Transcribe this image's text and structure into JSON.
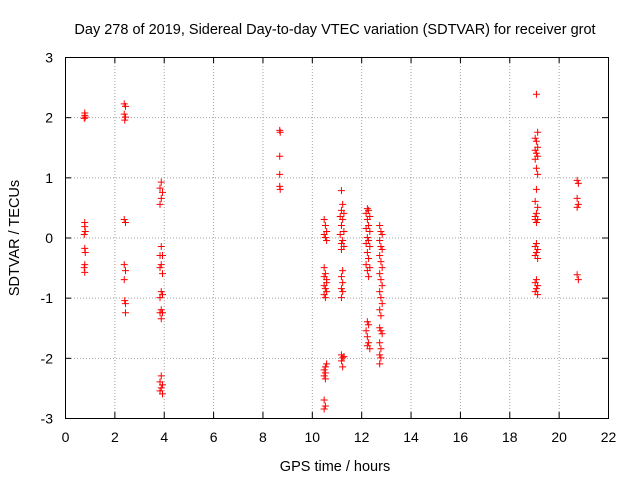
{
  "chart_data": {
    "type": "scatter",
    "title": "Day 278 of 2019, Sidereal Day-to-day VTEC variation (SDTVAR) for receiver grot",
    "xlabel": "GPS time / hours",
    "ylabel": "SDTVAR / TECUs",
    "xlim": [
      0,
      22
    ],
    "ylim": [
      -3,
      3
    ],
    "xticks": [
      "0",
      "2",
      "4",
      "6",
      "8",
      "10",
      "12",
      "14",
      "16",
      "18",
      "20",
      "22"
    ],
    "yticks": [
      "-3",
      "-2",
      "-1",
      "0",
      "1",
      "2",
      "3"
    ],
    "grid": true,
    "marker": "+",
    "color": "#ff0000",
    "series": [
      {
        "name": "SDTVAR",
        "points": [
          [
            0.8,
            2.07
          ],
          [
            0.8,
            2.03
          ],
          [
            0.82,
            2.0
          ],
          [
            0.78,
            1.98
          ],
          [
            0.8,
            0.25
          ],
          [
            0.8,
            0.18
          ],
          [
            0.82,
            0.1
          ],
          [
            0.78,
            0.05
          ],
          [
            0.8,
            -0.18
          ],
          [
            0.82,
            -0.25
          ],
          [
            0.8,
            -0.45
          ],
          [
            0.78,
            -0.5
          ],
          [
            0.8,
            -0.58
          ],
          [
            2.4,
            2.22
          ],
          [
            2.45,
            2.18
          ],
          [
            2.4,
            2.05
          ],
          [
            2.45,
            2.0
          ],
          [
            2.42,
            1.95
          ],
          [
            2.4,
            0.3
          ],
          [
            2.45,
            0.25
          ],
          [
            2.4,
            -0.45
          ],
          [
            2.45,
            -0.55
          ],
          [
            2.4,
            -0.7
          ],
          [
            2.42,
            -1.05
          ],
          [
            2.45,
            -1.1
          ],
          [
            2.45,
            -1.25
          ],
          [
            3.9,
            0.92
          ],
          [
            3.85,
            0.82
          ],
          [
            3.95,
            0.75
          ],
          [
            3.9,
            0.65
          ],
          [
            3.85,
            0.55
          ],
          [
            3.9,
            -0.15
          ],
          [
            3.85,
            -0.3
          ],
          [
            3.95,
            -0.3
          ],
          [
            3.9,
            -0.45
          ],
          [
            3.85,
            -0.5
          ],
          [
            3.95,
            -0.6
          ],
          [
            3.9,
            -0.9
          ],
          [
            3.85,
            -1.0
          ],
          [
            3.95,
            -0.95
          ],
          [
            3.9,
            -1.2
          ],
          [
            3.85,
            -1.25
          ],
          [
            3.95,
            -1.25
          ],
          [
            3.9,
            -1.35
          ],
          [
            3.9,
            -2.3
          ],
          [
            3.85,
            -2.4
          ],
          [
            3.95,
            -2.45
          ],
          [
            3.9,
            -2.5
          ],
          [
            3.85,
            -2.55
          ],
          [
            3.95,
            -2.6
          ],
          [
            8.7,
            1.78
          ],
          [
            8.72,
            1.75
          ],
          [
            8.7,
            1.35
          ],
          [
            8.7,
            1.05
          ],
          [
            8.7,
            0.85
          ],
          [
            8.72,
            0.8
          ],
          [
            10.5,
            0.3
          ],
          [
            10.55,
            0.2
          ],
          [
            10.6,
            0.1
          ],
          [
            10.5,
            0.05
          ],
          [
            10.55,
            0.0
          ],
          [
            10.6,
            -0.05
          ],
          [
            10.5,
            -0.5
          ],
          [
            10.55,
            -0.6
          ],
          [
            10.6,
            -0.7
          ],
          [
            10.5,
            -0.8
          ],
          [
            10.55,
            -0.85
          ],
          [
            10.6,
            -0.9
          ],
          [
            10.5,
            -0.95
          ],
          [
            10.55,
            -1.0
          ],
          [
            10.6,
            -0.75
          ],
          [
            10.5,
            -0.65
          ],
          [
            10.6,
            -2.1
          ],
          [
            10.55,
            -2.15
          ],
          [
            10.5,
            -2.2
          ],
          [
            10.55,
            -2.25
          ],
          [
            10.5,
            -2.3
          ],
          [
            10.55,
            -2.35
          ],
          [
            10.5,
            -2.7
          ],
          [
            10.55,
            -2.8
          ],
          [
            10.5,
            -2.85
          ],
          [
            11.2,
            0.78
          ],
          [
            11.25,
            0.55
          ],
          [
            11.2,
            0.45
          ],
          [
            11.3,
            0.4
          ],
          [
            11.15,
            0.35
          ],
          [
            11.25,
            0.3
          ],
          [
            11.2,
            0.2
          ],
          [
            11.3,
            0.1
          ],
          [
            11.15,
            0.05
          ],
          [
            11.25,
            -0.05
          ],
          [
            11.2,
            -0.1
          ],
          [
            11.3,
            -0.15
          ],
          [
            11.2,
            -0.2
          ],
          [
            11.25,
            -0.55
          ],
          [
            11.2,
            -0.65
          ],
          [
            11.25,
            -0.75
          ],
          [
            11.2,
            -0.85
          ],
          [
            11.25,
            -0.9
          ],
          [
            11.2,
            -1.0
          ],
          [
            11.2,
            -1.95
          ],
          [
            11.25,
            -2.0
          ],
          [
            11.3,
            -1.98
          ],
          [
            11.2,
            -2.05
          ],
          [
            11.25,
            -2.15
          ],
          [
            12.25,
            0.48
          ],
          [
            12.3,
            0.45
          ],
          [
            12.2,
            0.4
          ],
          [
            12.35,
            0.35
          ],
          [
            12.25,
            0.3
          ],
          [
            12.3,
            0.2
          ],
          [
            12.2,
            0.15
          ],
          [
            12.35,
            0.1
          ],
          [
            12.25,
            0.0
          ],
          [
            12.3,
            -0.05
          ],
          [
            12.2,
            -0.1
          ],
          [
            12.35,
            -0.15
          ],
          [
            12.25,
            -0.25
          ],
          [
            12.3,
            -0.35
          ],
          [
            12.2,
            -0.45
          ],
          [
            12.35,
            -0.5
          ],
          [
            12.25,
            -0.55
          ],
          [
            12.3,
            -0.65
          ],
          [
            12.25,
            -1.4
          ],
          [
            12.3,
            -1.45
          ],
          [
            12.2,
            -1.55
          ],
          [
            12.25,
            -1.65
          ],
          [
            12.3,
            -1.75
          ],
          [
            12.25,
            -1.8
          ],
          [
            12.35,
            -1.85
          ],
          [
            12.75,
            0.2
          ],
          [
            12.8,
            0.1
          ],
          [
            12.85,
            0.05
          ],
          [
            12.75,
            -0.05
          ],
          [
            12.8,
            -0.15
          ],
          [
            12.85,
            -0.2
          ],
          [
            12.75,
            -0.3
          ],
          [
            12.8,
            -0.4
          ],
          [
            12.85,
            -0.5
          ],
          [
            12.75,
            -0.6
          ],
          [
            12.8,
            -0.7
          ],
          [
            12.85,
            -0.8
          ],
          [
            12.75,
            -0.9
          ],
          [
            12.8,
            -1.0
          ],
          [
            12.85,
            -1.1
          ],
          [
            12.75,
            -1.2
          ],
          [
            12.8,
            -1.3
          ],
          [
            12.75,
            -1.5
          ],
          [
            12.8,
            -1.55
          ],
          [
            12.85,
            -1.6
          ],
          [
            12.75,
            -1.75
          ],
          [
            12.8,
            -1.85
          ],
          [
            12.75,
            -1.95
          ],
          [
            12.8,
            -2.0
          ],
          [
            12.75,
            -2.1
          ],
          [
            19.1,
            2.38
          ],
          [
            19.15,
            1.75
          ],
          [
            19.05,
            1.65
          ],
          [
            19.1,
            1.6
          ],
          [
            19.15,
            1.5
          ],
          [
            19.05,
            1.45
          ],
          [
            19.1,
            1.4
          ],
          [
            19.15,
            1.35
          ],
          [
            19.05,
            1.3
          ],
          [
            19.1,
            1.15
          ],
          [
            19.15,
            1.05
          ],
          [
            19.1,
            0.8
          ],
          [
            19.05,
            0.6
          ],
          [
            19.15,
            0.5
          ],
          [
            19.1,
            0.4
          ],
          [
            19.05,
            0.35
          ],
          [
            19.15,
            0.3
          ],
          [
            19.1,
            0.25
          ],
          [
            19.05,
            0.3
          ],
          [
            19.1,
            -0.1
          ],
          [
            19.05,
            -0.15
          ],
          [
            19.15,
            -0.2
          ],
          [
            19.1,
            -0.25
          ],
          [
            19.05,
            -0.3
          ],
          [
            19.15,
            -0.35
          ],
          [
            19.1,
            -0.7
          ],
          [
            19.05,
            -0.75
          ],
          [
            19.15,
            -0.8
          ],
          [
            19.1,
            -0.85
          ],
          [
            19.05,
            -0.9
          ],
          [
            19.15,
            -0.95
          ],
          [
            20.75,
            0.95
          ],
          [
            20.8,
            0.9
          ],
          [
            20.75,
            0.65
          ],
          [
            20.8,
            0.55
          ],
          [
            20.75,
            0.5
          ],
          [
            20.75,
            -0.62
          ],
          [
            20.8,
            -0.7
          ]
        ]
      }
    ]
  }
}
